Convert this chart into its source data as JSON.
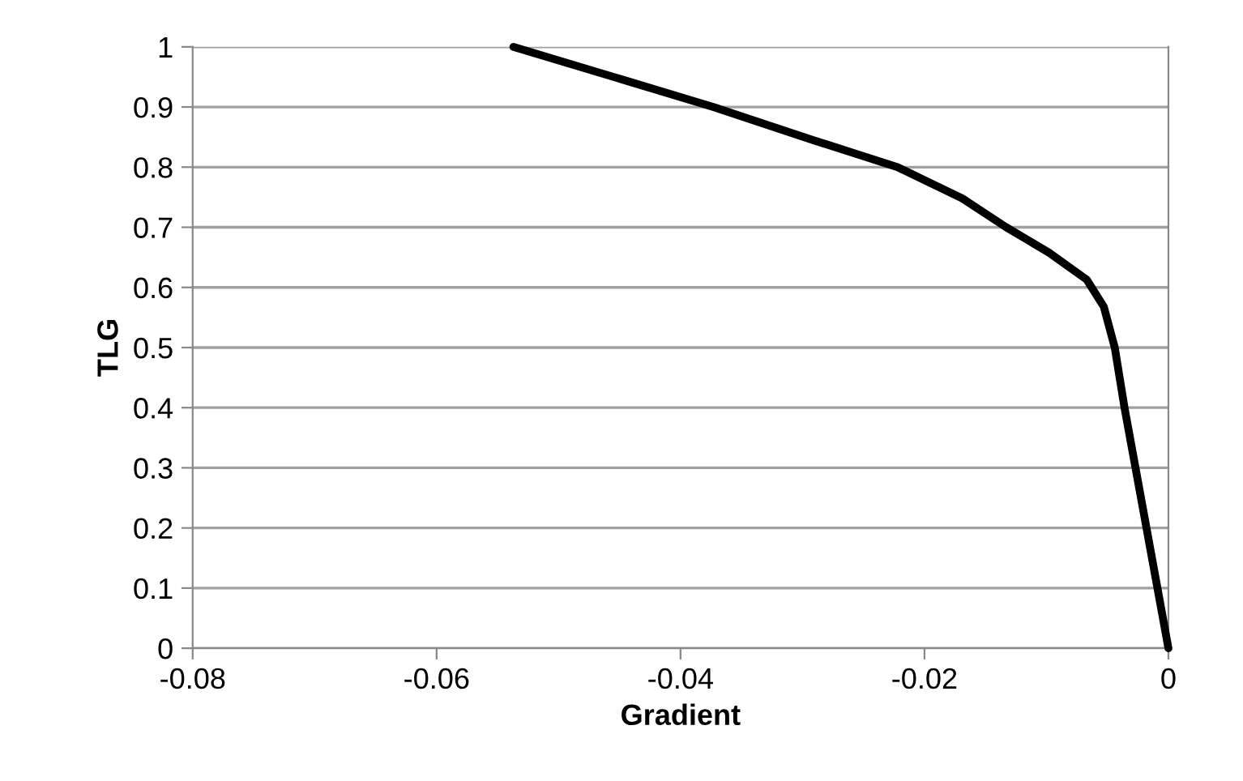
{
  "chart_data": {
    "type": "line",
    "xlabel": "Gradient",
    "ylabel": "TLG",
    "x": [
      -0.0537,
      -0.0373,
      -0.0293,
      -0.0222,
      -0.0169,
      -0.0133,
      -0.0098,
      -0.0067,
      -0.0053,
      -0.0044,
      -0.0036,
      -0.0027,
      -0.0018,
      -0.0009,
      0
    ],
    "series": [
      {
        "color": "#000000",
        "values": [
          1,
          0.9,
          0.846,
          0.8,
          0.748,
          0.7,
          0.658,
          0.613,
          0.568,
          0.5,
          0.4,
          0.3,
          0.2,
          0.1,
          0
        ]
      }
    ],
    "xlim": [
      -0.08,
      0
    ],
    "xticks": [
      {
        "value": -0.08,
        "label": "-0.08"
      },
      {
        "value": -0.06,
        "label": "-0.06"
      },
      {
        "value": -0.04,
        "label": "-0.04"
      },
      {
        "value": -0.02,
        "label": "-0.02"
      },
      0
    ],
    "ylim": [
      0,
      1
    ],
    "yticks": [
      0,
      0.1,
      0.2,
      0.3,
      0.4,
      0.5,
      0.6,
      0.7,
      0.8,
      0.9,
      1
    ],
    "grid": "y",
    "marker": "none",
    "line_style": "solid",
    "legend": false
  }
}
